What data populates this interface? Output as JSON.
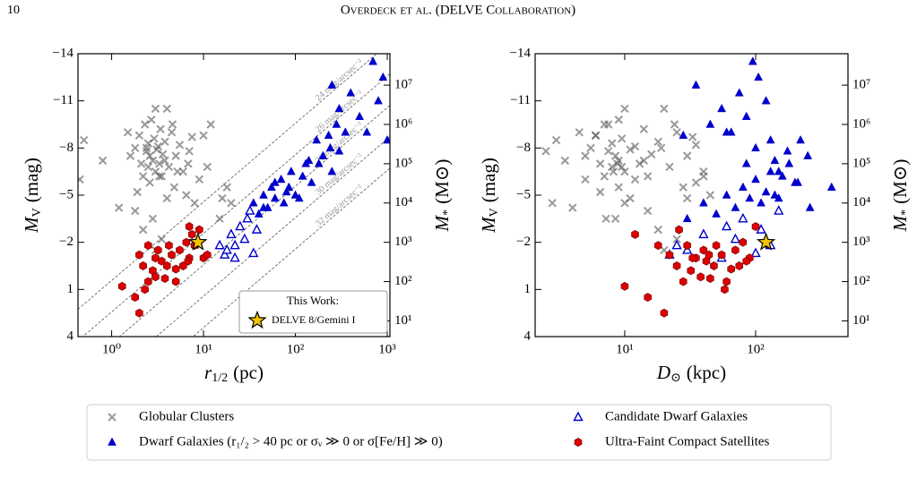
{
  "header": {
    "page": "10",
    "running_title": "Overdeck et al. (DELVE Collaboration)"
  },
  "chart_data": [
    {
      "type": "scatter",
      "xscale": "log",
      "y2scale": "log",
      "xlim": [
        0.43,
        1070
      ],
      "ylim": [
        4,
        -14
      ],
      "y2lim": [
        3.98,
        63100000
      ],
      "xticks": [
        {
          "value": 1,
          "label": "10⁰"
        },
        {
          "value": 10,
          "label": "10¹"
        },
        {
          "value": 100,
          "label": "10²"
        },
        {
          "value": 1000,
          "label": "10³"
        }
      ],
      "yticks": [
        {
          "value": -14,
          "label": "−14"
        },
        {
          "value": -11,
          "label": "−11"
        },
        {
          "value": -8,
          "label": "−8"
        },
        {
          "value": -5,
          "label": "−5"
        },
        {
          "value": -2,
          "label": "−2"
        },
        1,
        4
      ],
      "y2ticks": [
        {
          "value": 10,
          "label": "10¹"
        },
        {
          "value": 100,
          "label": "10²"
        },
        {
          "value": 1000,
          "label": "10³"
        },
        {
          "value": 10000,
          "label": "10⁴"
        },
        {
          "value": 100000,
          "label": "10⁵"
        },
        {
          "value": 1000000,
          "label": "10⁶"
        },
        {
          "value": 10000000,
          "label": "10⁷"
        }
      ],
      "x_label": {
        "symbol": "r",
        "sub": "1/2",
        "unit": "(pc)"
      },
      "y_label": {
        "symbol": "M",
        "sub": "V",
        "unit": "(mag)"
      },
      "y2_label": {
        "symbol": "M",
        "sub": "*",
        "unit": "(M⊙)"
      },
      "legend_title": "This Work:",
      "sb_lines": [
        {
          "value": 24,
          "label": "24 mag/arcsec⁻²"
        },
        {
          "value": 26,
          "label": "26 mag/arcsec⁻²"
        },
        {
          "value": 28,
          "label": "28 mag/arcsec⁻²"
        },
        {
          "value": 30,
          "label": "30 mag/arcsec⁻²"
        },
        {
          "value": 32,
          "label": "32 mag/arcsec⁻²"
        }
      ],
      "series": [
        {
          "name": "Globular Clusters",
          "color": "#555555",
          "marker": "cross",
          "legend": "bottom",
          "x": [
            0.5,
            0.8,
            1.2,
            1.5,
            1.6,
            1.8,
            2.0,
            2.1,
            2.2,
            2.3,
            2.4,
            2.5,
            2.5,
            2.6,
            2.7,
            2.8,
            2.9,
            3.0,
            3.0,
            3.1,
            3.2,
            3.3,
            3.4,
            3.5,
            3.6,
            3.8,
            4.0,
            4.2,
            4.5,
            4.8,
            5.0,
            5.5,
            6.0,
            6.5,
            7.0,
            8.0,
            9.0,
            10,
            12,
            15,
            18,
            20,
            0.45,
            1.8,
            2.2,
            3.0,
            3.5,
            4.0,
            2.6,
            3.3,
            1.9,
            2.8,
            5.2,
            6.8,
            11,
            16,
            3.8,
            2.4,
            4.6,
            7.5
          ],
          "values": [
            -8.5,
            -7.2,
            -4.2,
            -9.0,
            -7.5,
            -8.0,
            -8.8,
            -7.0,
            -6.2,
            -9.5,
            -7.8,
            -8.3,
            -6.8,
            -7.5,
            -9.8,
            -7.2,
            -8.6,
            -6.5,
            -10.5,
            -7.9,
            -8.1,
            -7.0,
            -9.2,
            -6.2,
            -7.6,
            -8.4,
            -10.5,
            -6.8,
            -9.0,
            -5.5,
            -7.5,
            -8.2,
            -6.5,
            -5.0,
            -7.8,
            -4.5,
            -6.0,
            -8.8,
            -9.5,
            -3.5,
            -5.5,
            -4.5,
            -6.0,
            -4.0,
            -2.8,
            -1.5,
            -2.2,
            -4.8,
            -5.8,
            -6.2,
            -5.2,
            -3.5,
            -6.5,
            -7.0,
            -6.8,
            -4.8,
            -7.2,
            -8.0,
            -9.5,
            -8.7
          ]
        },
        {
          "name": "Dwarf Galaxies (r₁/₂ > 40 pc or σᵥ ≫ 0 or σ[Fe/H] ≫ 0)",
          "color": "#0000cc",
          "marker": "triangle",
          "legend": "bottom",
          "x": [
            30,
            35,
            40,
            45,
            50,
            55,
            60,
            70,
            75,
            80,
            90,
            100,
            110,
            120,
            130,
            150,
            170,
            200,
            230,
            250,
            280,
            300,
            350,
            400,
            500,
            700,
            900,
            1000,
            250,
            300,
            60,
            45,
            85,
            140,
            180,
            240,
            600,
            800
          ],
          "values": [
            -3.5,
            -4.5,
            -3.8,
            -5.0,
            -4.2,
            -5.5,
            -4.8,
            -6.0,
            -4.5,
            -5.2,
            -6.5,
            -5.0,
            -4.8,
            -6.2,
            -7.0,
            -5.8,
            -8.5,
            -7.5,
            -8.8,
            -12.0,
            -9.5,
            -10.5,
            -9.0,
            -11.5,
            -10.0,
            -13.5,
            -12.5,
            -8.5,
            -6.5,
            -7.8,
            -5.8,
            -4.2,
            -5.5,
            -7.2,
            -7.0,
            -8.0,
            -9.0,
            -11.0
          ]
        },
        {
          "name": "Candidate Dwarf Galaxies",
          "color": "#0000cc",
          "marker": "open-triangle",
          "legend": "bottom",
          "x": [
            15,
            17,
            18,
            20,
            22,
            25,
            28,
            30,
            35,
            38,
            22,
            32
          ],
          "values": [
            -1.8,
            -1.2,
            -1.5,
            -2.5,
            -1.0,
            -3.0,
            -2.2,
            -3.5,
            -1.3,
            -2.8,
            -1.8,
            -4.0
          ]
        },
        {
          "name": "Ultra-Faint Compact Satellites",
          "color": "#dd0000",
          "marker": "hexagon",
          "legend": "bottom",
          "x": [
            1.3,
            1.8,
            2.0,
            2.0,
            2.2,
            2.5,
            2.5,
            2.8,
            3.0,
            3.0,
            3.2,
            3.5,
            3.8,
            4.0,
            4.2,
            4.5,
            5.0,
            5.0,
            5.5,
            6.0,
            6.5,
            7.0,
            7.0,
            7.5,
            8.0,
            9.0,
            10,
            11,
            2.3,
            6.8
          ],
          "values": [
            0.8,
            1.5,
            2.5,
            -1.2,
            -0.5,
            0.5,
            -1.8,
            -0.2,
            -1.0,
            0.2,
            -1.5,
            -0.8,
            0.3,
            -0.5,
            -1.8,
            -1.2,
            0.5,
            -0.3,
            -1.5,
            -0.5,
            -2.0,
            -1.0,
            -3.0,
            -2.5,
            -1.8,
            -2.8,
            -1.0,
            -1.2,
            1.0,
            -0.8
          ]
        },
        {
          "name": "DELVE 8/Gemini I",
          "color": "#f5c400",
          "marker": "star",
          "legend": "inset",
          "x": [
            8.7
          ],
          "values": [
            -2.0
          ],
          "error": [
            0.4
          ]
        }
      ]
    },
    {
      "type": "scatter",
      "xscale": "log",
      "y2scale": "log",
      "xlim": [
        2.07,
        507
      ],
      "ylim": [
        4,
        -14
      ],
      "y2lim": [
        3.98,
        63100000
      ],
      "xticks": [
        {
          "value": 10,
          "label": "10¹"
        },
        {
          "value": 100,
          "label": "10²"
        }
      ],
      "yticks": [
        {
          "value": -14,
          "label": "−14"
        },
        {
          "value": -11,
          "label": "−11"
        },
        {
          "value": -8,
          "label": "−8"
        },
        {
          "value": -5,
          "label": "−5"
        },
        {
          "value": -2,
          "label": "−2"
        },
        1,
        4
      ],
      "y2ticks": [
        {
          "value": 10,
          "label": "10¹"
        },
        {
          "value": 100,
          "label": "10²"
        },
        {
          "value": 1000,
          "label": "10³"
        },
        {
          "value": 10000,
          "label": "10⁴"
        },
        {
          "value": 100000,
          "label": "10⁵"
        },
        {
          "value": 1000000,
          "label": "10⁶"
        },
        {
          "value": 10000000,
          "label": "10⁷"
        }
      ],
      "x_label": {
        "symbol": "D",
        "sub": "⊙",
        "unit": "(kpc)"
      },
      "y_label": {
        "symbol": "M",
        "sub": "V",
        "unit": "(mag)"
      },
      "y2_label": {
        "symbol": "M",
        "sub": "*",
        "unit": "(M⊙)"
      },
      "series": [
        {
          "name": "Globular Clusters",
          "color": "#555555",
          "marker": "cross",
          "legend": "none",
          "x": [
            3,
            3.5,
            4,
            4.5,
            5,
            5.5,
            6,
            6.5,
            7,
            7,
            7.5,
            8,
            8,
            8.5,
            9,
            9,
            9.5,
            10,
            10,
            11,
            12,
            13,
            14,
            15,
            16,
            18,
            20,
            22,
            25,
            28,
            30,
            35,
            40,
            45,
            2.5,
            2.8,
            5,
            6,
            7.5,
            8.5,
            9,
            10,
            12,
            15,
            18,
            20,
            25,
            30,
            35,
            40,
            6.5,
            7.2,
            8.2,
            8.8,
            9.5,
            11,
            14,
            19,
            24,
            33
          ],
          "values": [
            -8.5,
            -7.2,
            -4.2,
            -9.0,
            -7.5,
            -8.0,
            -8.8,
            -7.0,
            -6.2,
            -9.5,
            -7.8,
            -8.3,
            -6.8,
            -7.5,
            -9.8,
            -7.2,
            -8.6,
            -6.5,
            -10.5,
            -7.9,
            -8.1,
            -7.0,
            -9.2,
            -6.2,
            -7.6,
            -8.4,
            -10.5,
            -6.8,
            -9.0,
            -5.5,
            -7.5,
            -8.2,
            -6.5,
            -5.0,
            -7.8,
            -4.5,
            -6.0,
            -8.8,
            -9.5,
            -3.5,
            -5.5,
            -4.5,
            -6.0,
            -4.0,
            -2.8,
            -1.5,
            -2.2,
            -4.8,
            -5.8,
            -6.2,
            -5.2,
            -3.5,
            -6.5,
            -7.0,
            -6.8,
            -4.8,
            -7.2,
            -8.0,
            -9.5,
            -8.7
          ]
        },
        {
          "name": "Dwarf Galaxies (r₁/₂ > 40 pc or σᵥ ≫ 0 or σ[Fe/H] ≫ 0)",
          "color": "#0000cc",
          "marker": "triangle",
          "legend": "none",
          "x": [
            30,
            40,
            50,
            60,
            70,
            80,
            90,
            100,
            110,
            120,
            130,
            140,
            150,
            160,
            180,
            200,
            220,
            250,
            28,
            35,
            45,
            55,
            65,
            75,
            85,
            95,
            105,
            130,
            150,
            175,
            210,
            260,
            380,
            140,
            85,
            100,
            60,
            120
          ],
          "values": [
            -3.5,
            -4.5,
            -3.8,
            -5.0,
            -4.2,
            -5.5,
            -4.8,
            -6.0,
            -4.5,
            -5.2,
            -6.5,
            -5.0,
            -4.8,
            -6.2,
            -7.0,
            -5.8,
            -8.5,
            -7.5,
            -8.8,
            -12.0,
            -9.5,
            -10.5,
            -9.0,
            -11.5,
            -10.0,
            -13.5,
            -12.5,
            -8.5,
            -6.5,
            -7.8,
            -5.8,
            -4.2,
            -5.5,
            -7.2,
            -7.0,
            -8.0,
            -9.0,
            -11.0
          ]
        },
        {
          "name": "Candidate Dwarf Galaxies",
          "color": "#0000cc",
          "marker": "open-triangle",
          "legend": "none",
          "x": [
            25,
            22,
            30,
            40,
            55,
            60,
            70,
            80,
            100,
            110,
            130,
            150
          ],
          "values": [
            -1.8,
            -1.2,
            -1.5,
            -2.5,
            -1.0,
            -3.0,
            -2.2,
            -3.5,
            -1.3,
            -2.8,
            -1.8,
            -4.0
          ]
        },
        {
          "name": "Ultra-Faint Compact Satellites",
          "color": "#dd0000",
          "marker": "hexagon",
          "legend": "none",
          "x": [
            10,
            15,
            20,
            22,
            25,
            28,
            30,
            32,
            35,
            38,
            40,
            42,
            45,
            48,
            50,
            55,
            60,
            65,
            70,
            75,
            80,
            90,
            100,
            12,
            18,
            26,
            33,
            44,
            58,
            85
          ],
          "values": [
            0.8,
            1.5,
            2.5,
            -1.2,
            -0.5,
            0.5,
            -1.8,
            -0.2,
            -1.0,
            0.2,
            -1.5,
            -0.8,
            0.3,
            -0.5,
            -1.8,
            -1.2,
            0.5,
            -0.3,
            -1.5,
            -0.5,
            -2.0,
            -1.0,
            -3.0,
            -2.5,
            -1.8,
            -2.8,
            -1.0,
            -1.2,
            1.0,
            -0.8
          ]
        },
        {
          "name": "DELVE 8/Gemini I",
          "color": "#f5c400",
          "marker": "star",
          "legend": "none",
          "x": [
            120
          ],
          "values": [
            -2.0
          ],
          "error": [
            0.4
          ]
        }
      ]
    }
  ]
}
